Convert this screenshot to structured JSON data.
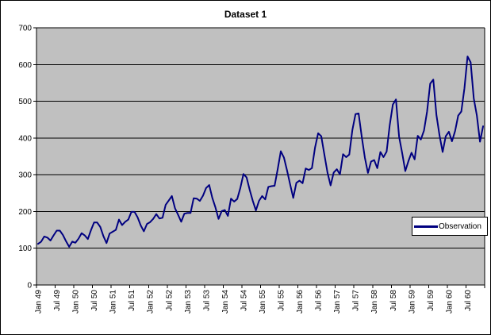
{
  "chart_data": {
    "type": "line",
    "title": "Dataset 1",
    "xlabel": "",
    "ylabel": "",
    "x_start": "Jan 1949",
    "x_end": "Dec 1960",
    "x_frequency": "monthly",
    "x_tick_labels": [
      "Jan 49",
      "Jul 49",
      "Jan 50",
      "Jul 50",
      "Jan 51",
      "Jul 51",
      "Jan 52",
      "Jul 52",
      "Jan 53",
      "Jul 53",
      "Jan 54",
      "Jul 54",
      "Jan 55",
      "Jul 55",
      "Jan 56",
      "Jul 56",
      "Jan 57",
      "Jul 57",
      "Jan 58",
      "Jul 58",
      "Jan 59",
      "Jul 59",
      "Jan 60",
      "Jul 60"
    ],
    "x_tick_interval_months": 6,
    "ylim": [
      0,
      700
    ],
    "y_ticks": [
      0,
      100,
      200,
      300,
      400,
      500,
      600,
      700
    ],
    "grid": true,
    "legend_position": "middle-right",
    "series": [
      {
        "name": "Observation",
        "color": "#000080",
        "values": [
          112,
          118,
          132,
          129,
          121,
          135,
          148,
          148,
          136,
          119,
          104,
          118,
          115,
          126,
          141,
          135,
          125,
          149,
          170,
          170,
          158,
          133,
          114,
          140,
          145,
          150,
          178,
          163,
          172,
          178,
          199,
          199,
          184,
          162,
          146,
          166,
          171,
          180,
          193,
          181,
          183,
          218,
          230,
          242,
          209,
          191,
          172,
          194,
          196,
          196,
          236,
          235,
          229,
          243,
          264,
          272,
          237,
          211,
          180,
          201,
          204,
          188,
          235,
          227,
          234,
          264,
          302,
          293,
          259,
          229,
          203,
          229,
          242,
          233,
          267,
          269,
          270,
          315,
          364,
          347,
          312,
          274,
          237,
          278,
          284,
          277,
          317,
          313,
          318,
          374,
          413,
          405,
          355,
          306,
          271,
          306,
          315,
          301,
          356,
          348,
          355,
          422,
          465,
          467,
          404,
          347,
          305,
          336,
          340,
          318,
          362,
          348,
          363,
          435,
          491,
          505,
          404,
          359,
          310,
          337,
          360,
          342,
          406,
          396,
          420,
          472,
          548,
          559,
          463,
          407,
          362,
          405,
          417,
          391,
          419,
          461,
          472,
          535,
          622,
          606,
          508,
          461,
          390,
          432
        ]
      }
    ]
  },
  "colors": {
    "plot_background": "#c0c0c0",
    "gridline": "#000000",
    "axis": "#000000",
    "text": "#000000",
    "line": "#000080",
    "chart_background": "#ffffff"
  }
}
